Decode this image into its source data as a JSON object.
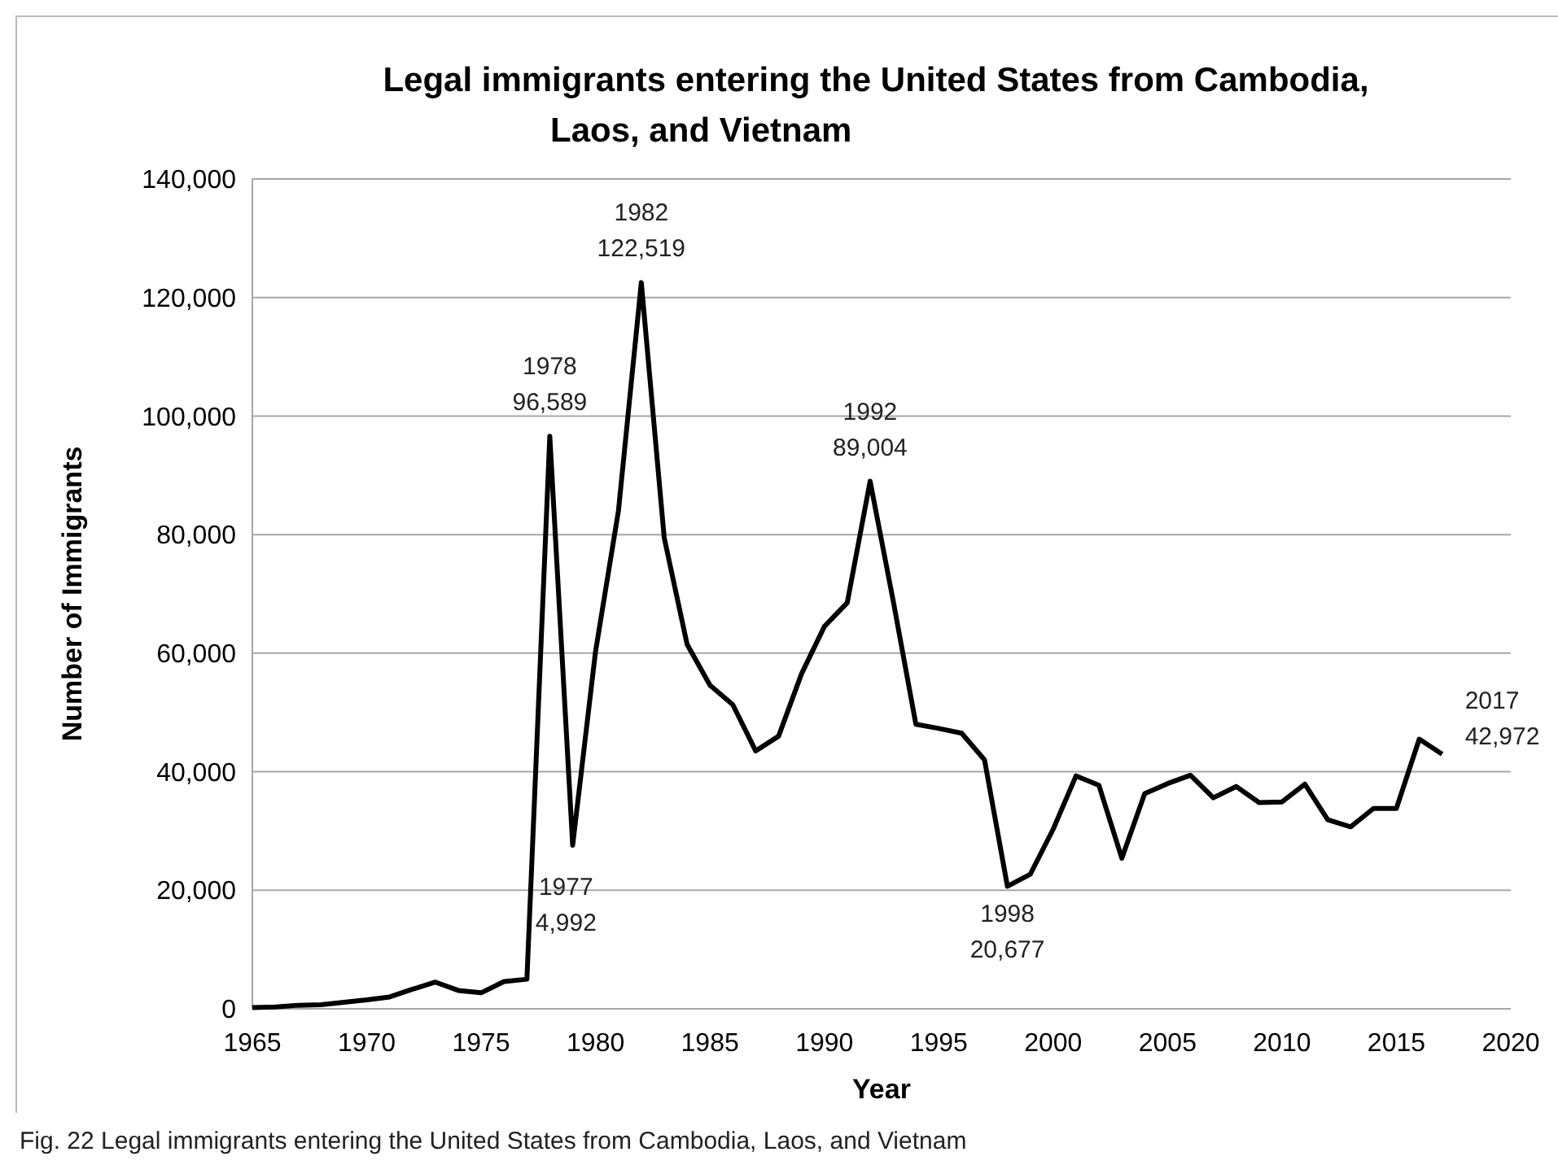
{
  "chart_data": {
    "type": "line",
    "title": "Legal immigrants entering the United States from Cambodia, Laos, and Vietnam",
    "xlabel": "Year",
    "ylabel": "Number of Immigrants",
    "x": [
      1965,
      1966,
      1967,
      1968,
      1969,
      1970,
      1971,
      1972,
      1973,
      1974,
      1975,
      1976,
      1977,
      1978,
      1979,
      1980,
      1981,
      1982,
      1983,
      1984,
      1985,
      1986,
      1987,
      1988,
      1989,
      1990,
      1991,
      1992,
      1993,
      1994,
      1995,
      1996,
      1997,
      1998,
      1999,
      2000,
      2001,
      2002,
      2003,
      2004,
      2005,
      2006,
      2007,
      2008,
      2009,
      2010,
      2011,
      2012,
      2013,
      2014,
      2015,
      2016,
      2017
    ],
    "series": [
      {
        "color": "#000000",
        "values": [
          200,
          300,
          600,
          700,
          1100,
          1500,
          2000,
          3300,
          4500,
          3100,
          2700,
          4600,
          4992,
          96589,
          27600,
          60300,
          84000,
          122519,
          79500,
          61500,
          54600,
          51300,
          43500,
          46000,
          56500,
          64500,
          68500,
          89004,
          69000,
          48000,
          47300,
          46500,
          42000,
          20677,
          22700,
          30300,
          39300,
          37700,
          25400,
          36300,
          38000,
          39400,
          35600,
          37500,
          34800,
          34900,
          37900,
          31900,
          30700,
          33800,
          33800,
          45500,
          42972
        ]
      }
    ],
    "xlim": [
      1965,
      2020
    ],
    "xticks": [
      1965,
      1970,
      1975,
      1980,
      1985,
      1990,
      1995,
      2000,
      2005,
      2010,
      2015,
      2020
    ],
    "ylim": [
      0,
      140000
    ],
    "yticks": [
      {
        "value": 0,
        "label": "0"
      },
      {
        "value": 20000,
        "label": "20,000"
      },
      {
        "value": 40000,
        "label": "40,000"
      },
      {
        "value": 60000,
        "label": "60,000"
      },
      {
        "value": 80000,
        "label": "80,000"
      },
      {
        "value": 100000,
        "label": "100,000"
      },
      {
        "value": 120000,
        "label": "120,000"
      },
      {
        "value": 140000,
        "label": "140,000"
      }
    ],
    "grid": "y",
    "marker": "none",
    "line_style": "solid",
    "annotations": [
      {
        "text": "1977\n4,992",
        "x": 1977,
        "y": 4992
      },
      {
        "text": "1978\n96,589",
        "x": 1978,
        "y": 96589
      },
      {
        "text": "1982\n122,519",
        "x": 1982,
        "y": 122519
      },
      {
        "text": "1992\n89,004",
        "x": 1992,
        "y": 89004
      },
      {
        "text": "1998\n20,677",
        "x": 1998,
        "y": 20677
      },
      {
        "text": "2017\n42,972",
        "x": 2017,
        "y": 42972
      },
      "Fig. 22 Legal immigrants entering the United States from Cambodia, Laos, and Vietnam"
    ]
  }
}
